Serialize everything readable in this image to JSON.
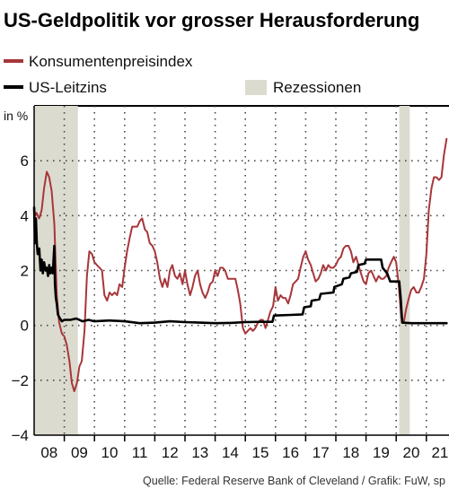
{
  "title": "US-Geldpolitik vor grosser Herausforderung",
  "source": "Quelle: Federal Reserve Bank of Cleveland / Grafik: FuW, sp",
  "unit_label": "in %",
  "colors": {
    "cpi": "#a8363a",
    "rate": "#000000",
    "recession": "#dcdbcf"
  },
  "legend": {
    "cpi": "Konsumentenpreisindex",
    "rate": "US-Leitzins",
    "recession": "Rezessionen"
  },
  "chart_data": {
    "type": "line",
    "title": "US-Geldpolitik vor grosser Herausforderung",
    "ylabel": "in %",
    "ylim": [
      -4,
      8
    ],
    "yticks": [
      -4,
      -2,
      0,
      2,
      4,
      6
    ],
    "xlim": [
      2008.0,
      2021.75
    ],
    "x_tick_labels": [
      "08",
      "09",
      "10",
      "11",
      "12",
      "13",
      "14",
      "15",
      "16",
      "17",
      "18",
      "19",
      "20",
      "21"
    ],
    "grid": true,
    "recessions": [
      [
        2008.0,
        2009.45
      ],
      [
        2020.1,
        2020.45
      ]
    ],
    "series": [
      {
        "name": "Konsumentenpreisindex",
        "color": "#a8363a",
        "points": [
          [
            2008.0,
            4.3
          ],
          [
            2008.04,
            4.0
          ],
          [
            2008.08,
            4.1
          ],
          [
            2008.12,
            4.0
          ],
          [
            2008.17,
            3.9
          ],
          [
            2008.25,
            4.2
          ],
          [
            2008.33,
            5.0
          ],
          [
            2008.42,
            5.6
          ],
          [
            2008.5,
            5.4
          ],
          [
            2008.58,
            4.9
          ],
          [
            2008.67,
            3.7
          ],
          [
            2008.75,
            1.1
          ],
          [
            2008.83,
            0.1
          ],
          [
            2008.92,
            -0.3
          ],
          [
            2009.0,
            -0.4
          ],
          [
            2009.08,
            -0.7
          ],
          [
            2009.17,
            -1.3
          ],
          [
            2009.25,
            -2.1
          ],
          [
            2009.33,
            -2.4
          ],
          [
            2009.42,
            -2.1
          ],
          [
            2009.5,
            -1.5
          ],
          [
            2009.58,
            -1.3
          ],
          [
            2009.67,
            -0.2
          ],
          [
            2009.75,
            1.8
          ],
          [
            2009.83,
            2.7
          ],
          [
            2009.92,
            2.6
          ],
          [
            2010.0,
            2.3
          ],
          [
            2010.08,
            2.2
          ],
          [
            2010.17,
            2.1
          ],
          [
            2010.25,
            2.0
          ],
          [
            2010.33,
            1.1
          ],
          [
            2010.42,
            0.9
          ],
          [
            2010.5,
            1.2
          ],
          [
            2010.58,
            1.1
          ],
          [
            2010.67,
            1.2
          ],
          [
            2010.75,
            1.1
          ],
          [
            2010.83,
            1.5
          ],
          [
            2010.92,
            1.4
          ],
          [
            2011.0,
            2.1
          ],
          [
            2011.08,
            2.7
          ],
          [
            2011.17,
            3.2
          ],
          [
            2011.25,
            3.6
          ],
          [
            2011.33,
            3.6
          ],
          [
            2011.42,
            3.6
          ],
          [
            2011.5,
            3.8
          ],
          [
            2011.58,
            3.9
          ],
          [
            2011.67,
            3.5
          ],
          [
            2011.75,
            3.4
          ],
          [
            2011.83,
            3.0
          ],
          [
            2011.92,
            2.9
          ],
          [
            2012.0,
            2.7
          ],
          [
            2012.08,
            2.3
          ],
          [
            2012.17,
            1.7
          ],
          [
            2012.25,
            1.4
          ],
          [
            2012.33,
            1.7
          ],
          [
            2012.42,
            1.4
          ],
          [
            2012.5,
            2.0
          ],
          [
            2012.58,
            2.2
          ],
          [
            2012.67,
            1.8
          ],
          [
            2012.75,
            1.7
          ],
          [
            2012.83,
            1.9
          ],
          [
            2012.92,
            1.5
          ],
          [
            2013.0,
            2.0
          ],
          [
            2013.08,
            1.5
          ],
          [
            2013.17,
            1.1
          ],
          [
            2013.25,
            1.4
          ],
          [
            2013.33,
            1.8
          ],
          [
            2013.42,
            2.0
          ],
          [
            2013.5,
            1.5
          ],
          [
            2013.58,
            1.2
          ],
          [
            2013.67,
            1.0
          ],
          [
            2013.75,
            1.2
          ],
          [
            2013.83,
            1.5
          ],
          [
            2013.92,
            1.6
          ],
          [
            2014.0,
            2.0
          ],
          [
            2014.08,
            1.8
          ],
          [
            2014.17,
            2.1
          ],
          [
            2014.25,
            2.1
          ],
          [
            2014.33,
            2.0
          ],
          [
            2014.42,
            1.7
          ],
          [
            2014.5,
            1.7
          ],
          [
            2014.58,
            1.7
          ],
          [
            2014.67,
            1.7
          ],
          [
            2014.75,
            1.3
          ],
          [
            2014.83,
            0.8
          ],
          [
            2014.92,
            -0.1
          ],
          [
            2015.0,
            -0.3
          ],
          [
            2015.08,
            -0.2
          ],
          [
            2015.17,
            -0.1
          ],
          [
            2015.25,
            -0.2
          ],
          [
            2015.33,
            -0.1
          ],
          [
            2015.42,
            0.1
          ],
          [
            2015.5,
            0.2
          ],
          [
            2015.58,
            0.2
          ],
          [
            2015.67,
            -0.1
          ],
          [
            2015.75,
            0.2
          ],
          [
            2015.83,
            0.5
          ],
          [
            2015.92,
            0.7
          ],
          [
            2016.0,
            1.4
          ],
          [
            2016.08,
            0.9
          ],
          [
            2016.17,
            1.1
          ],
          [
            2016.25,
            1.0
          ],
          [
            2016.33,
            1.0
          ],
          [
            2016.42,
            0.8
          ],
          [
            2016.5,
            1.1
          ],
          [
            2016.58,
            1.5
          ],
          [
            2016.67,
            1.6
          ],
          [
            2016.75,
            1.7
          ],
          [
            2016.83,
            2.1
          ],
          [
            2016.92,
            2.5
          ],
          [
            2017.0,
            2.7
          ],
          [
            2017.08,
            2.4
          ],
          [
            2017.17,
            2.2
          ],
          [
            2017.25,
            1.9
          ],
          [
            2017.33,
            1.6
          ],
          [
            2017.42,
            1.7
          ],
          [
            2017.5,
            1.9
          ],
          [
            2017.58,
            2.2
          ],
          [
            2017.67,
            2.0
          ],
          [
            2017.75,
            2.2
          ],
          [
            2017.83,
            2.1
          ],
          [
            2017.92,
            2.1
          ],
          [
            2018.0,
            2.2
          ],
          [
            2018.08,
            2.4
          ],
          [
            2018.17,
            2.5
          ],
          [
            2018.25,
            2.8
          ],
          [
            2018.33,
            2.9
          ],
          [
            2018.42,
            2.9
          ],
          [
            2018.5,
            2.7
          ],
          [
            2018.58,
            2.3
          ],
          [
            2018.67,
            2.5
          ],
          [
            2018.75,
            2.2
          ],
          [
            2018.83,
            1.9
          ],
          [
            2018.92,
            1.6
          ],
          [
            2019.0,
            1.5
          ],
          [
            2019.08,
            1.9
          ],
          [
            2019.17,
            2.0
          ],
          [
            2019.25,
            1.8
          ],
          [
            2019.33,
            1.6
          ],
          [
            2019.42,
            1.8
          ],
          [
            2019.5,
            1.7
          ],
          [
            2019.58,
            1.7
          ],
          [
            2019.67,
            1.8
          ],
          [
            2019.75,
            2.1
          ],
          [
            2019.83,
            2.3
          ],
          [
            2019.92,
            2.5
          ],
          [
            2020.0,
            2.3
          ],
          [
            2020.08,
            1.5
          ],
          [
            2020.17,
            0.3
          ],
          [
            2020.25,
            0.1
          ],
          [
            2020.33,
            0.6
          ],
          [
            2020.42,
            1.0
          ],
          [
            2020.5,
            1.3
          ],
          [
            2020.58,
            1.4
          ],
          [
            2020.67,
            1.2
          ],
          [
            2020.75,
            1.2
          ],
          [
            2020.83,
            1.4
          ],
          [
            2020.92,
            1.7
          ],
          [
            2021.0,
            2.6
          ],
          [
            2021.08,
            4.2
          ],
          [
            2021.17,
            5.0
          ],
          [
            2021.25,
            5.4
          ],
          [
            2021.33,
            5.4
          ],
          [
            2021.42,
            5.3
          ],
          [
            2021.5,
            5.4
          ],
          [
            2021.58,
            6.2
          ],
          [
            2021.67,
            6.8
          ]
        ]
      },
      {
        "name": "US-Leitzins",
        "color": "#000000",
        "points": [
          [
            2008.0,
            4.3
          ],
          [
            2008.03,
            3.0
          ],
          [
            2008.06,
            3.9
          ],
          [
            2008.09,
            3.0
          ],
          [
            2008.12,
            2.6
          ],
          [
            2008.17,
            2.8
          ],
          [
            2008.21,
            2.0
          ],
          [
            2008.25,
            2.4
          ],
          [
            2008.29,
            1.9
          ],
          [
            2008.33,
            2.3
          ],
          [
            2008.38,
            2.0
          ],
          [
            2008.42,
            2.1
          ],
          [
            2008.46,
            1.8
          ],
          [
            2008.5,
            2.2
          ],
          [
            2008.54,
            1.9
          ],
          [
            2008.58,
            2.1
          ],
          [
            2008.62,
            1.9
          ],
          [
            2008.67,
            2.9
          ],
          [
            2008.69,
            1.5
          ],
          [
            2008.72,
            1.0
          ],
          [
            2008.75,
            0.8
          ],
          [
            2008.79,
            0.4
          ],
          [
            2008.83,
            0.3
          ],
          [
            2008.92,
            0.15
          ],
          [
            2009.0,
            0.2
          ],
          [
            2009.2,
            0.2
          ],
          [
            2009.4,
            0.25
          ],
          [
            2009.6,
            0.15
          ],
          [
            2009.8,
            0.2
          ],
          [
            2010.0,
            0.15
          ],
          [
            2010.5,
            0.18
          ],
          [
            2011.0,
            0.15
          ],
          [
            2011.5,
            0.08
          ],
          [
            2012.0,
            0.1
          ],
          [
            2012.5,
            0.15
          ],
          [
            2013.0,
            0.12
          ],
          [
            2013.5,
            0.1
          ],
          [
            2014.0,
            0.08
          ],
          [
            2014.5,
            0.09
          ],
          [
            2015.0,
            0.12
          ],
          [
            2015.5,
            0.13
          ],
          [
            2015.9,
            0.13
          ],
          [
            2015.95,
            0.36
          ],
          [
            2016.5,
            0.38
          ],
          [
            2016.9,
            0.4
          ],
          [
            2016.95,
            0.66
          ],
          [
            2017.17,
            0.7
          ],
          [
            2017.2,
            0.9
          ],
          [
            2017.45,
            0.95
          ],
          [
            2017.5,
            1.15
          ],
          [
            2017.92,
            1.2
          ],
          [
            2017.95,
            1.4
          ],
          [
            2018.2,
            1.5
          ],
          [
            2018.25,
            1.7
          ],
          [
            2018.45,
            1.75
          ],
          [
            2018.5,
            1.9
          ],
          [
            2018.7,
            1.95
          ],
          [
            2018.75,
            2.2
          ],
          [
            2018.95,
            2.25
          ],
          [
            2019.0,
            2.4
          ],
          [
            2019.5,
            2.4
          ],
          [
            2019.55,
            2.1
          ],
          [
            2019.7,
            1.9
          ],
          [
            2019.8,
            1.6
          ],
          [
            2020.1,
            1.6
          ],
          [
            2020.15,
            1.0
          ],
          [
            2020.2,
            0.1
          ],
          [
            2020.5,
            0.08
          ],
          [
            2021.0,
            0.08
          ],
          [
            2021.5,
            0.08
          ],
          [
            2021.67,
            0.08
          ]
        ]
      }
    ]
  }
}
